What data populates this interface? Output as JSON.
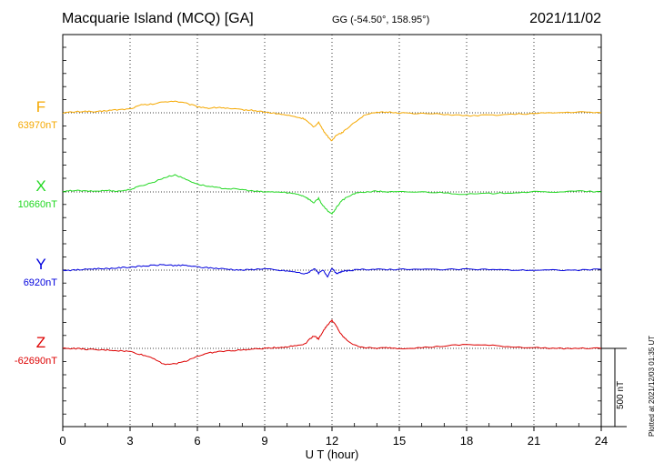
{
  "header": {
    "station": "Macquarie Island (MCQ)  [GA]",
    "coords": "GG (-54.50°, 158.95°)",
    "date": "2021/11/02"
  },
  "plotted_note": "Plotted at 2021/12/03 01:35 UT",
  "scale_note": "500 nT",
  "chart_data": {
    "type": "line",
    "xlabel": "U T (hour)",
    "xlim": [
      0,
      24
    ],
    "x_ticks": [
      "0",
      "3",
      "6",
      "9",
      "12",
      "15",
      "18",
      "21",
      "24"
    ],
    "scale_bar_nT": 500,
    "series": [
      {
        "name": "F",
        "baseline": "63970nT",
        "color": "#f5a800",
        "x": [
          0,
          0.5,
          1,
          1.5,
          2,
          2.5,
          3,
          3.5,
          4,
          4.5,
          5,
          5.5,
          6,
          6.5,
          7,
          7.5,
          8,
          8.5,
          9,
          9.5,
          10,
          10.5,
          10.8,
          11,
          11.2,
          11.4,
          11.6,
          11.8,
          12,
          12.2,
          12.4,
          12.6,
          13,
          13.5,
          14,
          14.5,
          15,
          16,
          17,
          18,
          19,
          20,
          21,
          22,
          23,
          24
        ],
        "y": [
          0,
          5,
          10,
          5,
          15,
          20,
          25,
          50,
          55,
          70,
          75,
          60,
          40,
          30,
          35,
          25,
          20,
          15,
          5,
          -5,
          -15,
          -30,
          -40,
          -70,
          -90,
          -60,
          -110,
          -150,
          -180,
          -140,
          -130,
          -110,
          -60,
          -10,
          0,
          5,
          0,
          -5,
          -10,
          -20,
          -15,
          -10,
          -5,
          0,
          5,
          0
        ]
      },
      {
        "name": "X",
        "baseline": "10660nT",
        "color": "#22d822",
        "x": [
          0,
          0.5,
          1,
          1.5,
          2,
          2.5,
          3,
          3.5,
          4,
          4.5,
          5,
          5.5,
          6,
          6.5,
          7,
          7.5,
          8,
          8.5,
          9,
          9.5,
          10,
          10.5,
          10.8,
          11,
          11.2,
          11.4,
          11.6,
          11.8,
          12,
          12.2,
          12.4,
          12.6,
          13,
          13.5,
          14,
          14.5,
          15,
          16,
          17,
          18,
          19,
          20,
          21,
          22,
          23,
          24
        ],
        "y": [
          0,
          10,
          5,
          5,
          10,
          5,
          15,
          40,
          60,
          90,
          110,
          80,
          50,
          35,
          25,
          20,
          15,
          5,
          0,
          0,
          -5,
          -15,
          -30,
          -50,
          -70,
          -40,
          -90,
          -120,
          -140,
          -100,
          -60,
          -40,
          -10,
          0,
          5,
          0,
          0,
          0,
          -5,
          -15,
          -10,
          -5,
          0,
          0,
          5,
          0
        ]
      },
      {
        "name": "Y",
        "baseline": "6920nT",
        "color": "#0000dd",
        "x": [
          0,
          0.5,
          1,
          1.5,
          2,
          2.5,
          3,
          3.5,
          4,
          4.5,
          5,
          5.5,
          6,
          6.5,
          7,
          7.5,
          8,
          8.5,
          9,
          9.5,
          10,
          10.5,
          10.8,
          11,
          11.2,
          11.4,
          11.6,
          11.8,
          12,
          12.2,
          12.4,
          12.6,
          13,
          13.5,
          14,
          14.5,
          15,
          16,
          17,
          18,
          19,
          20,
          21,
          22,
          23,
          24
        ],
        "y": [
          0,
          0,
          5,
          10,
          10,
          15,
          20,
          25,
          30,
          35,
          30,
          30,
          20,
          15,
          10,
          5,
          0,
          5,
          10,
          0,
          -5,
          -15,
          -25,
          -10,
          10,
          -20,
          0,
          -40,
          15,
          -25,
          -10,
          -5,
          0,
          5,
          5,
          5,
          5,
          5,
          5,
          5,
          5,
          0,
          0,
          0,
          0,
          5
        ]
      },
      {
        "name": "Z",
        "baseline": "-62690nT",
        "color": "#dd0000",
        "x": [
          0,
          0.5,
          1,
          1.5,
          2,
          2.5,
          3,
          3.5,
          4,
          4.5,
          5,
          5.5,
          6,
          6.5,
          7,
          7.5,
          8,
          8.5,
          9,
          9.5,
          10,
          10.5,
          10.8,
          11,
          11.2,
          11.4,
          11.6,
          11.8,
          12,
          12.2,
          12.4,
          12.6,
          13,
          13.5,
          14,
          14.5,
          15,
          16,
          17,
          18,
          19,
          20,
          21,
          22,
          23,
          24
        ],
        "y": [
          0,
          0,
          -5,
          -10,
          -10,
          -15,
          -20,
          -40,
          -60,
          -100,
          -100,
          -80,
          -50,
          -30,
          -20,
          -15,
          -10,
          -5,
          0,
          5,
          10,
          20,
          30,
          60,
          80,
          60,
          110,
          150,
          180,
          140,
          90,
          60,
          20,
          5,
          0,
          5,
          0,
          5,
          15,
          25,
          20,
          10,
          5,
          0,
          0,
          0
        ]
      }
    ]
  }
}
